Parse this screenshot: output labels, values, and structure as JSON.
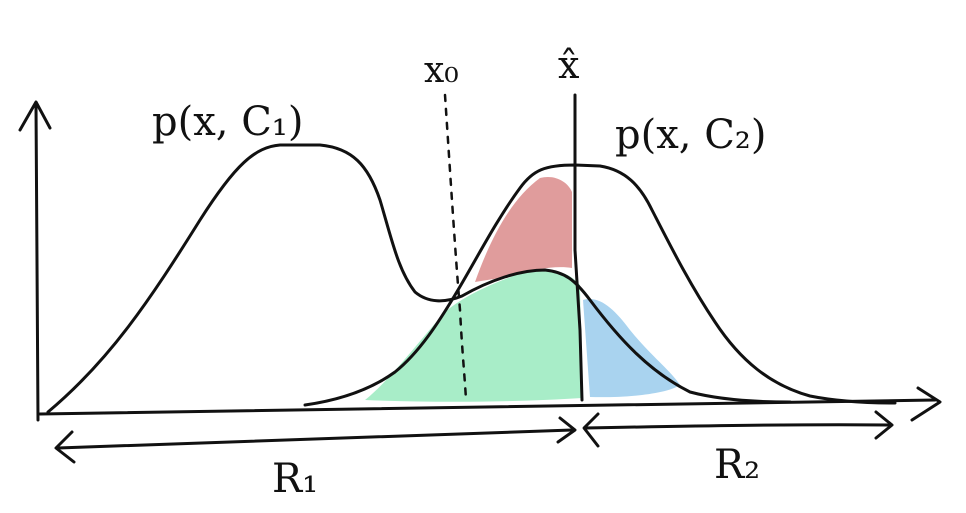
{
  "labels": {
    "curve1": "p(x, C₁)",
    "curve2": "p(x, C₂)",
    "x0": "x₀",
    "xhat": "x̂",
    "region1": "R₁",
    "region2": "R₂"
  },
  "colors": {
    "ink": "#111111",
    "red_region": "#e09c9c",
    "green_region": "#a8edc8",
    "blue_region": "#a9d3ef"
  }
}
